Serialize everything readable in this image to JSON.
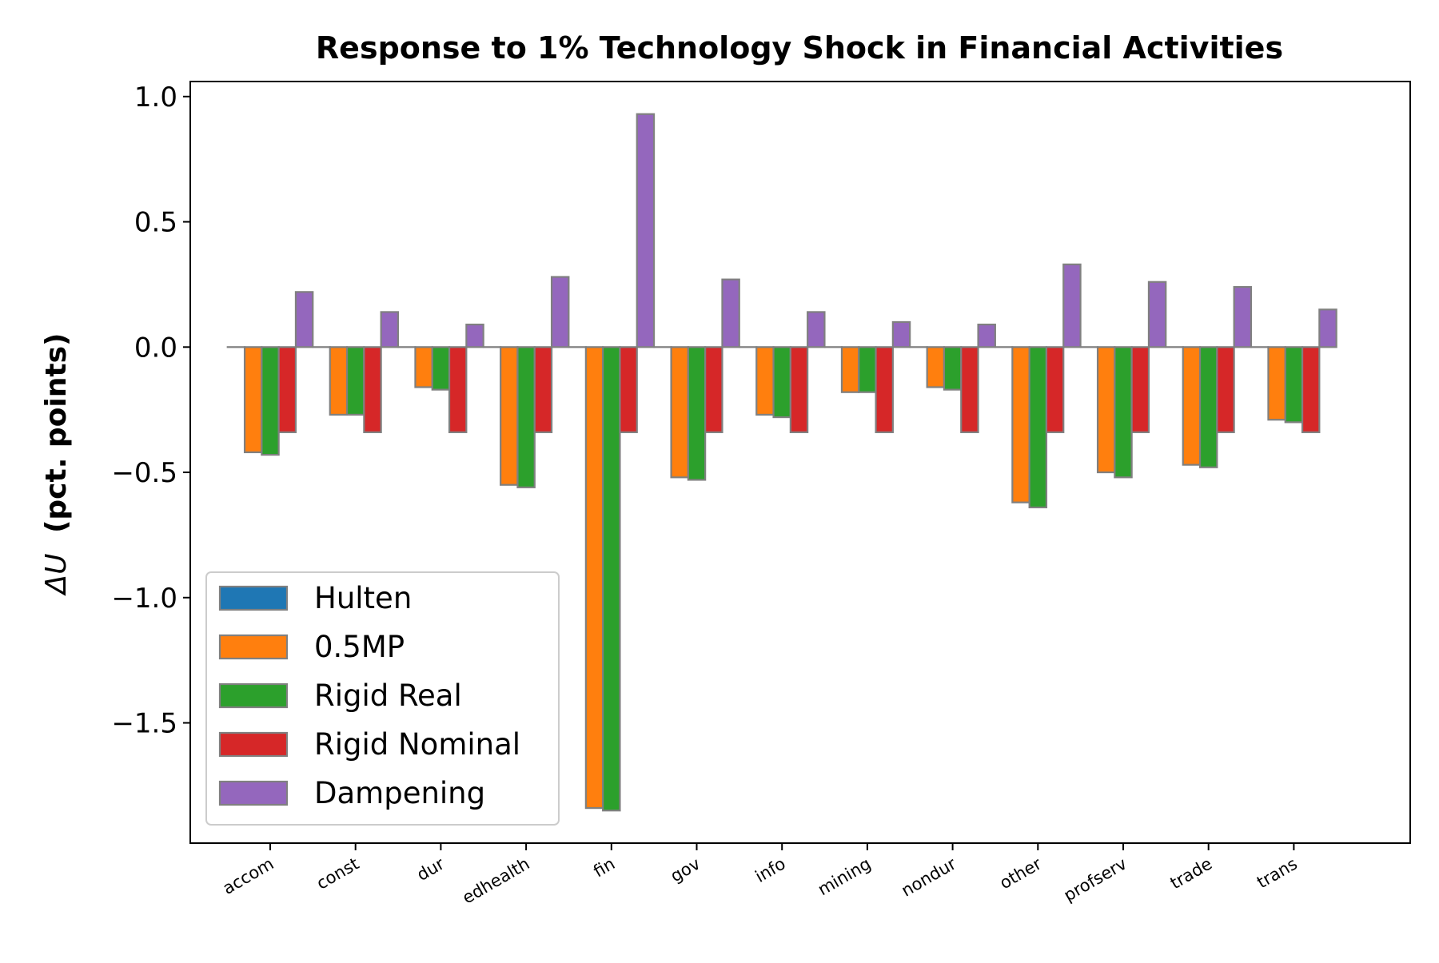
{
  "chart_data": {
    "type": "bar",
    "title": "Response to 1% Technology Shock in Financial Activities",
    "ylabel_symbol": "ΔU",
    "ylabel_text": "(pct. points)",
    "xlabel": "",
    "ylim": [
      -1.98,
      1.06
    ],
    "yticks": [
      {
        "value": 1.0,
        "label": "1.0"
      },
      {
        "value": 0.5,
        "label": "0.5"
      },
      {
        "value": 0.0,
        "label": "0.0"
      },
      {
        "value": -0.5,
        "label": "−0.5"
      },
      {
        "value": -1.0,
        "label": "−1.0"
      },
      {
        "value": -1.5,
        "label": "−1.5"
      }
    ],
    "categories": [
      "accom",
      "const",
      "dur",
      "edhealth",
      "fin",
      "gov",
      "info",
      "mining",
      "nondur",
      "other",
      "profserv",
      "trade",
      "trans"
    ],
    "series": [
      {
        "name": "Hulten",
        "color": "#1f77b4",
        "values": [
          0,
          0,
          0,
          0,
          0,
          0,
          0,
          0,
          0,
          0,
          0,
          0,
          0
        ]
      },
      {
        "name": "0.5MP",
        "color": "#ff7f0e",
        "values": [
          -0.42,
          -0.27,
          -0.16,
          -0.55,
          -1.84,
          -0.52,
          -0.27,
          -0.18,
          -0.16,
          -0.62,
          -0.5,
          -0.47,
          -0.29
        ]
      },
      {
        "name": "Rigid Real",
        "color": "#2ca02c",
        "values": [
          -0.43,
          -0.27,
          -0.17,
          -0.56,
          -1.85,
          -0.53,
          -0.28,
          -0.18,
          -0.17,
          -0.64,
          -0.52,
          -0.48,
          -0.3
        ]
      },
      {
        "name": "Rigid Nominal",
        "color": "#d62728",
        "values": [
          -0.34,
          -0.34,
          -0.34,
          -0.34,
          -0.34,
          -0.34,
          -0.34,
          -0.34,
          -0.34,
          -0.34,
          -0.34,
          -0.34,
          -0.34
        ]
      },
      {
        "name": "Dampening",
        "color": "#9467bd",
        "values": [
          0.22,
          0.14,
          0.09,
          0.28,
          0.93,
          0.27,
          0.14,
          0.1,
          0.09,
          0.33,
          0.26,
          0.24,
          0.15
        ]
      }
    ],
    "legend": "lower-left",
    "grid": false,
    "edge_color": "#808080"
  }
}
